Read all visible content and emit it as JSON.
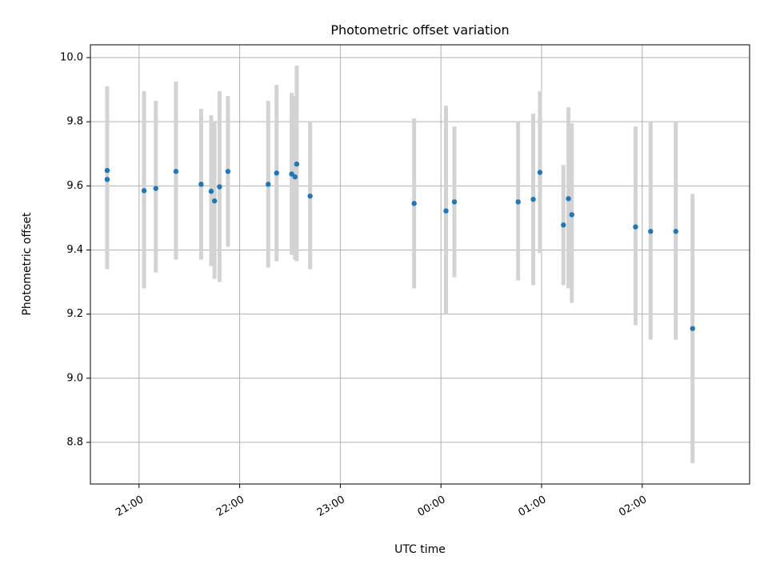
{
  "chart_data": {
    "type": "scatter",
    "title": "Photometric offset variation",
    "xlabel": "UTC time",
    "ylabel": "Photometric offset",
    "x_axis": {
      "kind": "time",
      "range": [
        "20:31",
        "03:04"
      ],
      "ticks": [
        "21:00",
        "22:00",
        "23:00",
        "00:00",
        "01:00",
        "02:00"
      ],
      "tick_label_rotation": "angled"
    },
    "y_axis": {
      "range": [
        8.67,
        10.04
      ],
      "ticks": [
        8.8,
        9.0,
        9.2,
        9.4,
        9.6,
        9.8,
        10.0
      ],
      "tick_labels": [
        "8.8",
        "9.0",
        "9.2",
        "9.4",
        "9.6",
        "9.8",
        "10.0"
      ]
    },
    "grid": true,
    "legend": "none",
    "series": [
      {
        "marker_color": "#1f77b4",
        "errorbar_color": "#d3d3d3",
        "points": [
          {
            "x": "20:41",
            "y": 9.648,
            "lo": 9.34,
            "hi": 9.91
          },
          {
            "x": "20:41",
            "y": 9.62,
            "lo": 9.34,
            "hi": 9.91
          },
          {
            "x": "21:03",
            "y": 9.585,
            "lo": 9.28,
            "hi": 9.895
          },
          {
            "x": "21:10",
            "y": 9.592,
            "lo": 9.33,
            "hi": 9.865
          },
          {
            "x": "21:22",
            "y": 9.645,
            "lo": 9.37,
            "hi": 9.925
          },
          {
            "x": "21:37",
            "y": 9.605,
            "lo": 9.37,
            "hi": 9.84
          },
          {
            "x": "21:43",
            "y": 9.583,
            "lo": 9.35,
            "hi": 9.82
          },
          {
            "x": "21:45",
            "y": 9.553,
            "lo": 9.31,
            "hi": 9.8
          },
          {
            "x": "21:48",
            "y": 9.597,
            "lo": 9.3,
            "hi": 9.895
          },
          {
            "x": "21:53",
            "y": 9.645,
            "lo": 9.41,
            "hi": 9.88
          },
          {
            "x": "22:17",
            "y": 9.605,
            "lo": 9.345,
            "hi": 9.865
          },
          {
            "x": "22:22",
            "y": 9.64,
            "lo": 9.365,
            "hi": 9.915
          },
          {
            "x": "22:31",
            "y": 9.637,
            "lo": 9.385,
            "hi": 9.89
          },
          {
            "x": "22:33",
            "y": 9.628,
            "lo": 9.37,
            "hi": 9.88
          },
          {
            "x": "22:34",
            "y": 9.668,
            "lo": 9.365,
            "hi": 9.975
          },
          {
            "x": "22:42",
            "y": 9.568,
            "lo": 9.34,
            "hi": 9.8
          },
          {
            "x": "23:44",
            "y": 9.545,
            "lo": 9.28,
            "hi": 9.81
          },
          {
            "x": "00:03",
            "y": 9.522,
            "lo": 9.2,
            "hi": 9.85
          },
          {
            "x": "00:08",
            "y": 9.55,
            "lo": 9.315,
            "hi": 9.785
          },
          {
            "x": "00:46",
            "y": 9.55,
            "lo": 9.305,
            "hi": 9.8
          },
          {
            "x": "00:55",
            "y": 9.558,
            "lo": 9.29,
            "hi": 9.825
          },
          {
            "x": "00:59",
            "y": 9.642,
            "lo": 9.39,
            "hi": 9.895
          },
          {
            "x": "01:13",
            "y": 9.478,
            "lo": 9.29,
            "hi": 9.665
          },
          {
            "x": "01:16",
            "y": 9.56,
            "lo": 9.28,
            "hi": 9.845
          },
          {
            "x": "01:18",
            "y": 9.51,
            "lo": 9.235,
            "hi": 9.795
          },
          {
            "x": "01:56",
            "y": 9.472,
            "lo": 9.165,
            "hi": 9.785
          },
          {
            "x": "02:05",
            "y": 9.458,
            "lo": 9.12,
            "hi": 9.8
          },
          {
            "x": "02:20",
            "y": 9.458,
            "lo": 9.12,
            "hi": 9.8
          },
          {
            "x": "02:30",
            "y": 9.155,
            "lo": 8.735,
            "hi": 9.575
          }
        ]
      }
    ]
  }
}
